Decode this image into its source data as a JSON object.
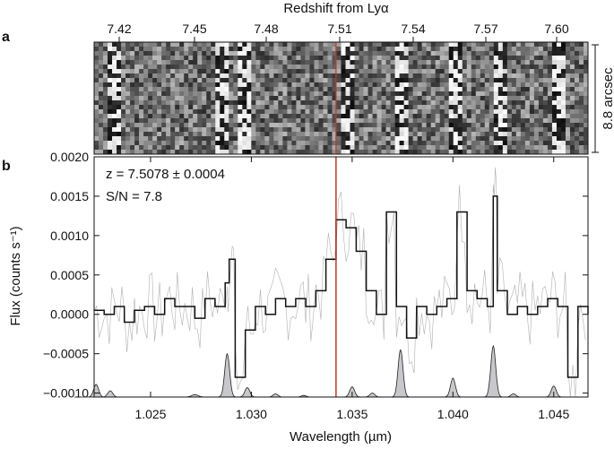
{
  "panels": {
    "a": {
      "label": "a",
      "top_axis_label": "Redshift from Lyα",
      "side_label": "8.8 arcsec"
    },
    "b": {
      "label": "b",
      "annotation_z": "z = 7.5078 ± 0.0004",
      "annotation_sn": "S/N = 7.8"
    }
  },
  "colors": {
    "spectrum": "#111111",
    "sky": "#c8c8cc",
    "marker": "#c0392b",
    "noise": "#b0b0b0"
  },
  "chart_data": {
    "type": "line",
    "xlabel": "Wavelength (µm)",
    "ylabel": "Flux (counts s⁻¹)",
    "xlim": [
      1.0222,
      1.0467
    ],
    "ylim": [
      -0.00105,
      0.002
    ],
    "xticks": [
      1.025,
      1.03,
      1.035,
      1.04,
      1.045
    ],
    "xtick_labels": [
      "1.025",
      "1.030",
      "1.035",
      "1.040",
      "1.045"
    ],
    "yticks": [
      -0.001,
      -0.0005,
      0.0,
      0.0005,
      0.001,
      0.0015,
      0.002
    ],
    "ytick_labels": [
      "−0.0010",
      "−0.0005",
      "0.0000",
      "0.0005",
      "0.0010",
      "0.0015",
      "0.0020"
    ],
    "top_ticks": [
      7.42,
      7.45,
      7.48,
      7.51,
      7.54,
      7.57,
      7.6
    ],
    "top_tick_labels": [
      "7.42",
      "7.45",
      "7.48",
      "7.51",
      "7.54",
      "7.57",
      "7.60"
    ],
    "marker_x": 1.0342,
    "spectrum": {
      "x": [
        1.0222,
        1.0227,
        1.0232,
        1.0237,
        1.0242,
        1.0247,
        1.0252,
        1.0257,
        1.0262,
        1.0267,
        1.0272,
        1.0277,
        1.0282,
        1.0287,
        1.0289,
        1.0292,
        1.0297,
        1.0302,
        1.0307,
        1.0312,
        1.0317,
        1.0322,
        1.0327,
        1.0332,
        1.0337,
        1.0342,
        1.0347,
        1.0352,
        1.0357,
        1.0362,
        1.0367,
        1.0372,
        1.0377,
        1.0382,
        1.0387,
        1.0392,
        1.0397,
        1.0402,
        1.0407,
        1.0412,
        1.0417,
        1.042,
        1.0422,
        1.0427,
        1.0432,
        1.0437,
        1.0442,
        1.0447,
        1.0452,
        1.0457,
        1.0462,
        1.0467
      ],
      "y": [
        5e-05,
        0.0,
        0.0001,
        -0.0001,
        5e-05,
        0.0001,
        0.0,
        0.0002,
        0.0001,
        0.0001,
        -5e-05,
        0.0002,
        0.0001,
        0.0004,
        0.0007,
        -0.0008,
        -0.0002,
        0.0001,
        0.0,
        0.0002,
        0.0001,
        0.0002,
        0.0001,
        0.0003,
        0.0007,
        0.0012,
        0.0011,
        0.0008,
        0.0003,
        0.0,
        0.0013,
        0.0001,
        -0.0003,
        0.0001,
        0.0,
        0.0001,
        0.0002,
        0.0013,
        0.0003,
        0.0002,
        0.0001,
        0.0015,
        0.0003,
        0.0,
        0.0001,
        0.0,
        0.0001,
        0.0002,
        0.0001,
        -0.0008,
        0.0001,
        0.0
      ]
    },
    "sky_lines": [
      {
        "x": 1.0223,
        "height": 0.00016,
        "width": 0.0003
      },
      {
        "x": 1.023,
        "height": 8e-05,
        "width": 0.0003
      },
      {
        "x": 1.0272,
        "height": 3e-05,
        "width": 0.0004
      },
      {
        "x": 1.0288,
        "height": 0.00055,
        "width": 0.0003
      },
      {
        "x": 1.0298,
        "height": 0.00012,
        "width": 0.0003
      },
      {
        "x": 1.0312,
        "height": 4e-05,
        "width": 0.0003
      },
      {
        "x": 1.0326,
        "height": 2e-05,
        "width": 0.0003
      },
      {
        "x": 1.035,
        "height": 0.00013,
        "width": 0.0003
      },
      {
        "x": 1.036,
        "height": 5e-05,
        "width": 0.0003
      },
      {
        "x": 1.0374,
        "height": 0.0006,
        "width": 0.0003
      },
      {
        "x": 1.04,
        "height": 0.00024,
        "width": 0.0003
      },
      {
        "x": 1.042,
        "height": 0.00065,
        "width": 0.0003
      },
      {
        "x": 1.043,
        "height": 4e-05,
        "width": 0.0003
      },
      {
        "x": 1.045,
        "height": 0.00014,
        "width": 0.0003
      }
    ]
  }
}
